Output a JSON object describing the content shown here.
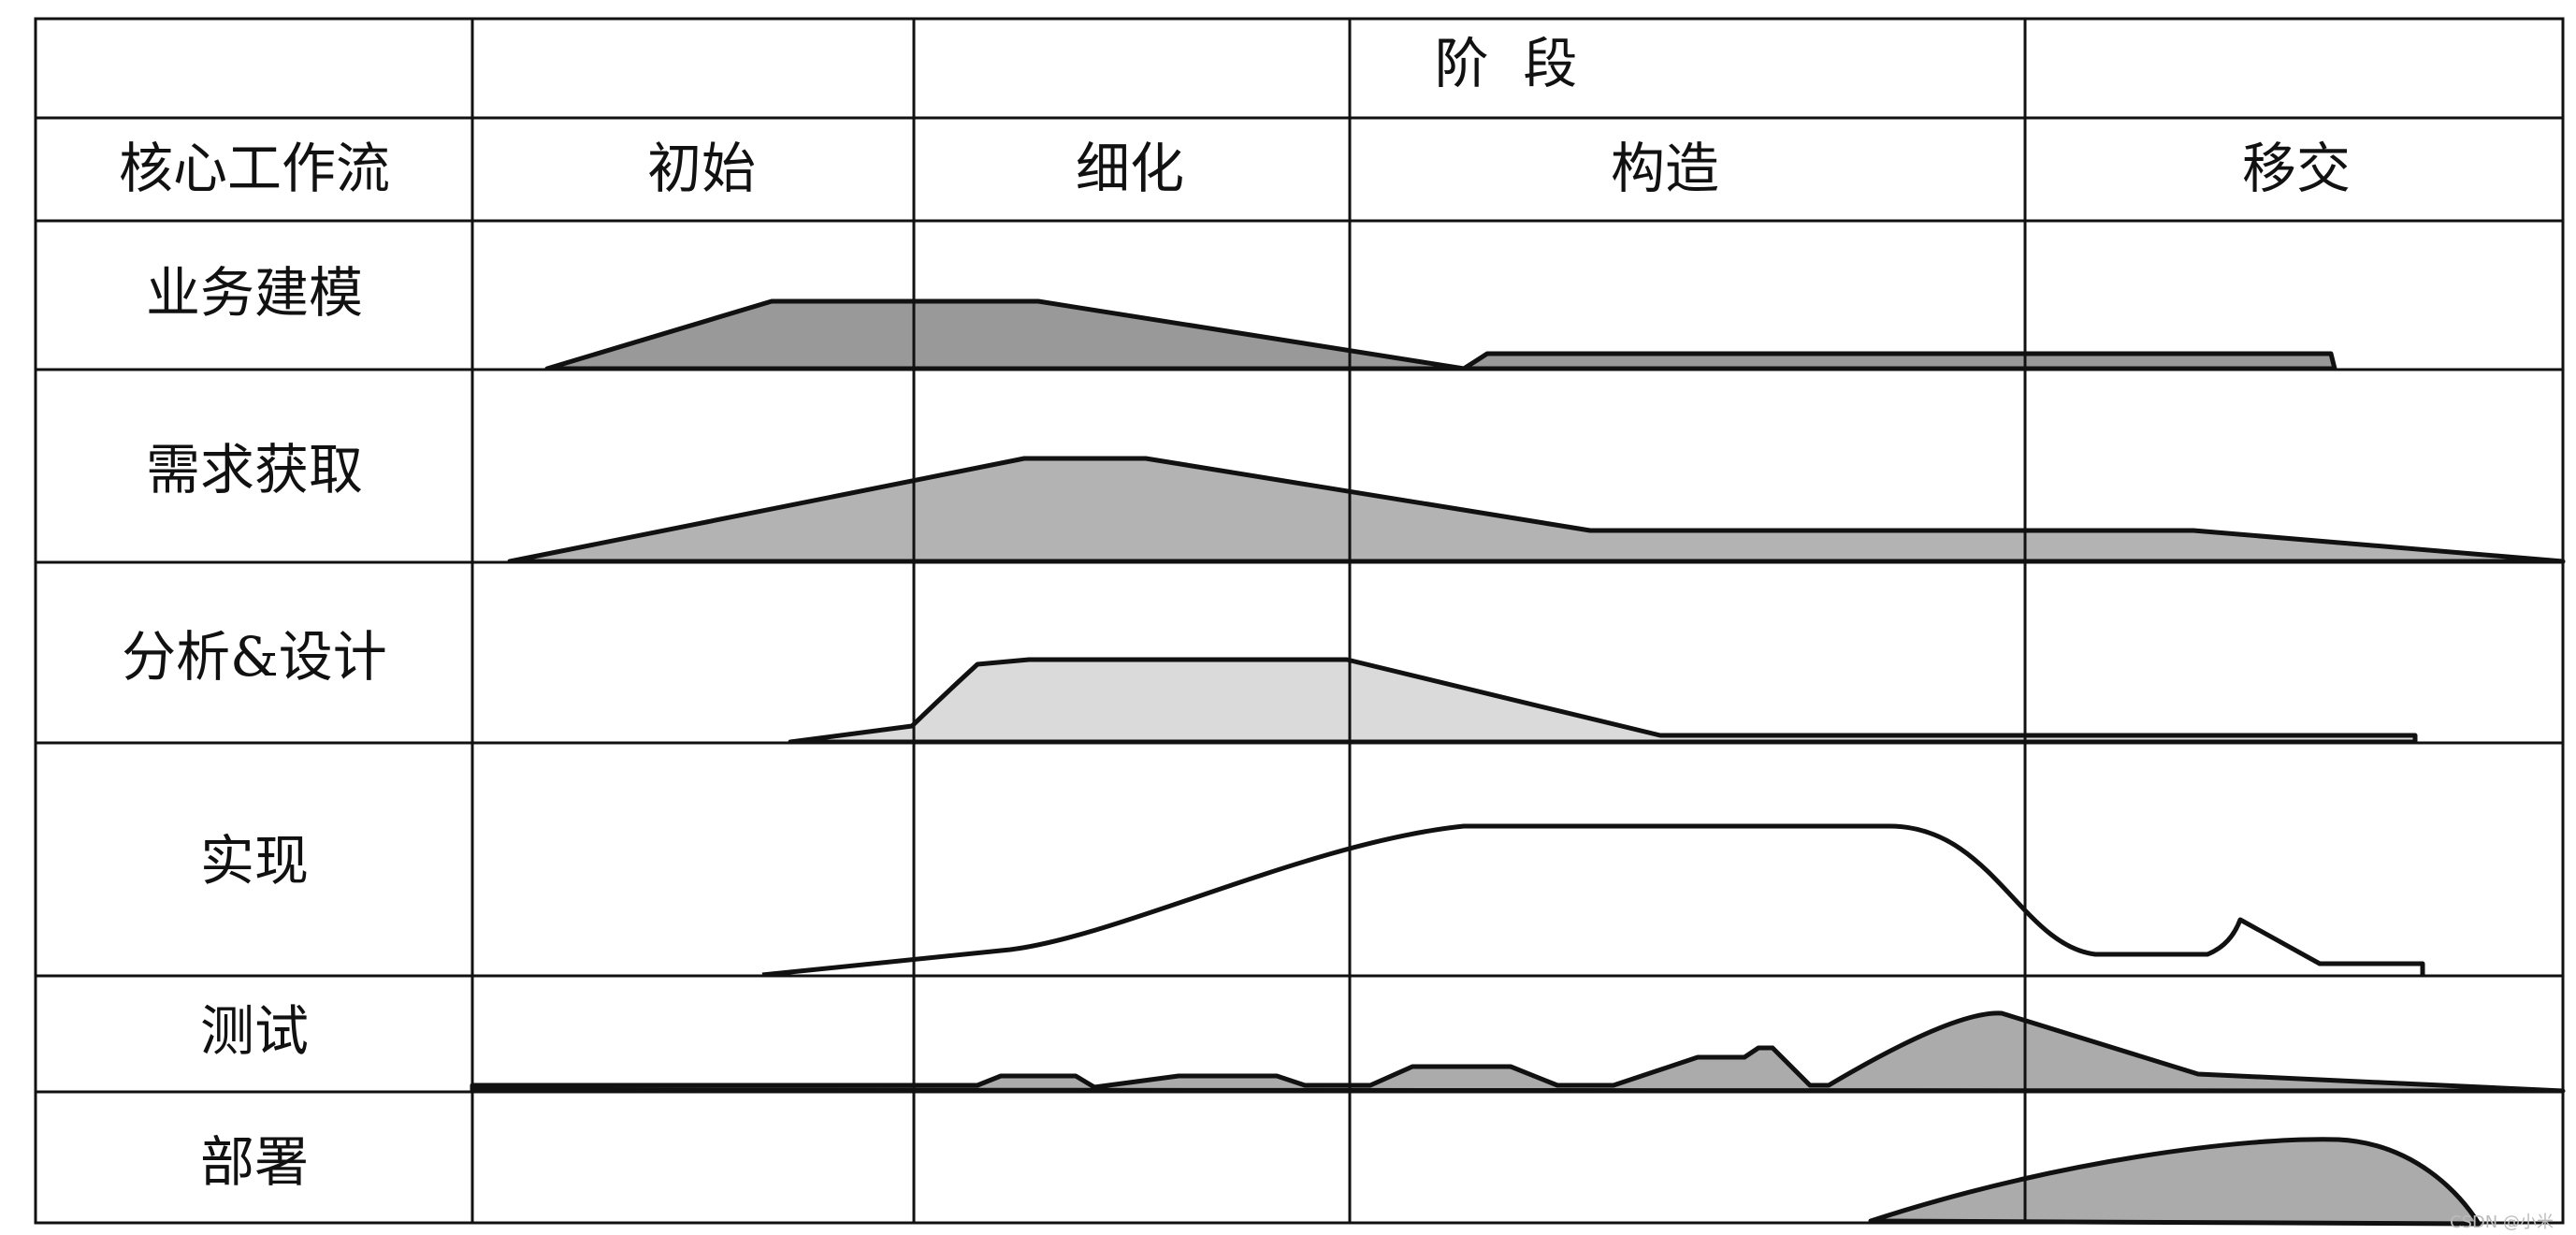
{
  "header": {
    "stage_label": "阶  段",
    "workflow_label": "核心工作流",
    "phases": [
      "初始",
      "细化",
      "构造",
      "移交"
    ]
  },
  "workflows": [
    {
      "name": "业务建模",
      "fill": "#999999"
    },
    {
      "name": "需求获取",
      "fill": "#b3b3b3"
    },
    {
      "name": "分析&设计",
      "fill": "#dadada"
    },
    {
      "name": "实现",
      "fill": "#ffffff"
    },
    {
      "name": "测试",
      "fill": "#ababab"
    },
    {
      "name": "部署",
      "fill": "#ababab"
    }
  ],
  "watermark": "CSDN @小米"
}
